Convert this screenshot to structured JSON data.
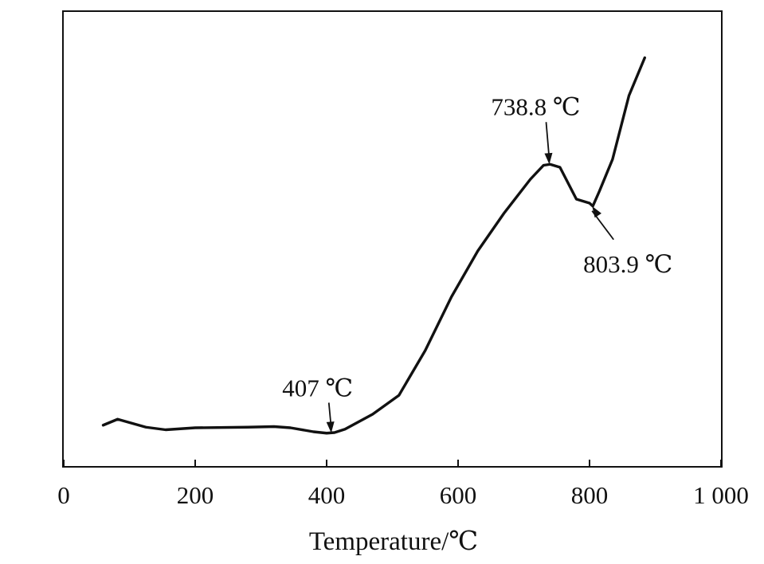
{
  "chart_data": {
    "type": "line",
    "title": "",
    "xlabel": "Temperature/℃",
    "ylabel": "",
    "xlim": [
      0,
      1000
    ],
    "xticks": [
      {
        "value": 0,
        "label": "0"
      },
      {
        "value": 200,
        "label": "200"
      },
      {
        "value": 400,
        "label": "400"
      },
      {
        "value": 600,
        "label": "600"
      },
      {
        "value": 800,
        "label": "800"
      },
      {
        "value": 1000,
        "label": "1 000"
      }
    ],
    "y_axis_ticks_shown": false,
    "grid": false,
    "legend": "none",
    "series": [
      {
        "x": [
          60,
          82,
          125,
          155,
          200,
          280,
          320,
          345,
          380,
          400,
          412,
          428,
          470,
          510,
          550,
          590,
          630,
          670,
          710,
          730,
          740,
          755,
          780,
          800,
          805,
          815,
          835,
          860,
          884
        ],
        "y": [
          10.5,
          13.5,
          9.5,
          8.2,
          9.2,
          9.5,
          9.8,
          9.2,
          7.2,
          6.5,
          6.8,
          8.5,
          16.0,
          25.5,
          48.0,
          75.0,
          98.0,
          117.0,
          134.0,
          141.0,
          141.5,
          140.0,
          124.0,
          122.0,
          120.5,
          128.0,
          144.0,
          176.0,
          195.0
        ]
      }
    ],
    "annotations": [
      {
        "text": "407 ℃",
        "x": 407,
        "y": 6.6
      },
      {
        "text": "738.8 ℃",
        "x": 738.8,
        "y": 141.5
      },
      {
        "text": "803.9 ℃",
        "x": 803.9,
        "y": 120.5
      }
    ]
  }
}
